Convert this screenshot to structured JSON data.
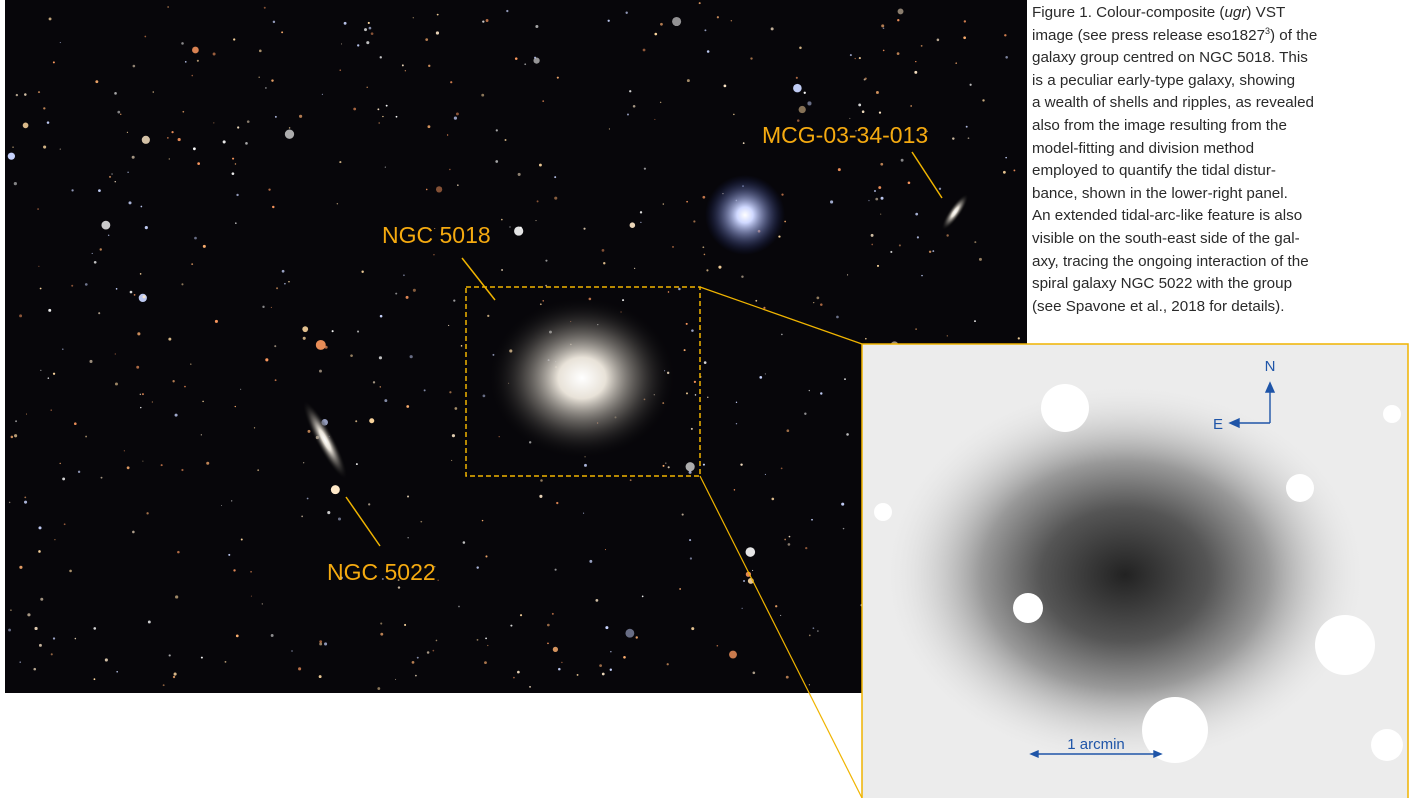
{
  "figure": {
    "labels": {
      "ngc5018": "NGC 5018",
      "ngc5022": "NGC 5022",
      "mcg": "MCG-03-34-013"
    },
    "inset": {
      "north": "N",
      "east": "E",
      "scale": "1 arcmin"
    },
    "caption": {
      "label": "Figure 1.",
      "line0": [
        " Colour-composite (",
        "ugr",
        ") VST"
      ],
      "line1": [
        "image (see press release eso1827",
        "3",
        ") of the"
      ],
      "lines": [
        "galaxy group centred on NGC 5018. This",
        "is a peculiar early-type galaxy, showing",
        "a wealth of shells and ripples, as revealed",
        "also from the image resulting from the",
        "model-fitting and division method",
        "employed to quantify the tidal distur-",
        "bance, shown in the lower-right panel.",
        "An extended tidal-arc-like feature is also",
        "visible on the south-east side of the gal-",
        "axy, tracing the ongoing interaction of the",
        "spiral galaxy NGC 5022 with the group",
        "(see Spavone et al., 2018 for details)."
      ]
    }
  }
}
